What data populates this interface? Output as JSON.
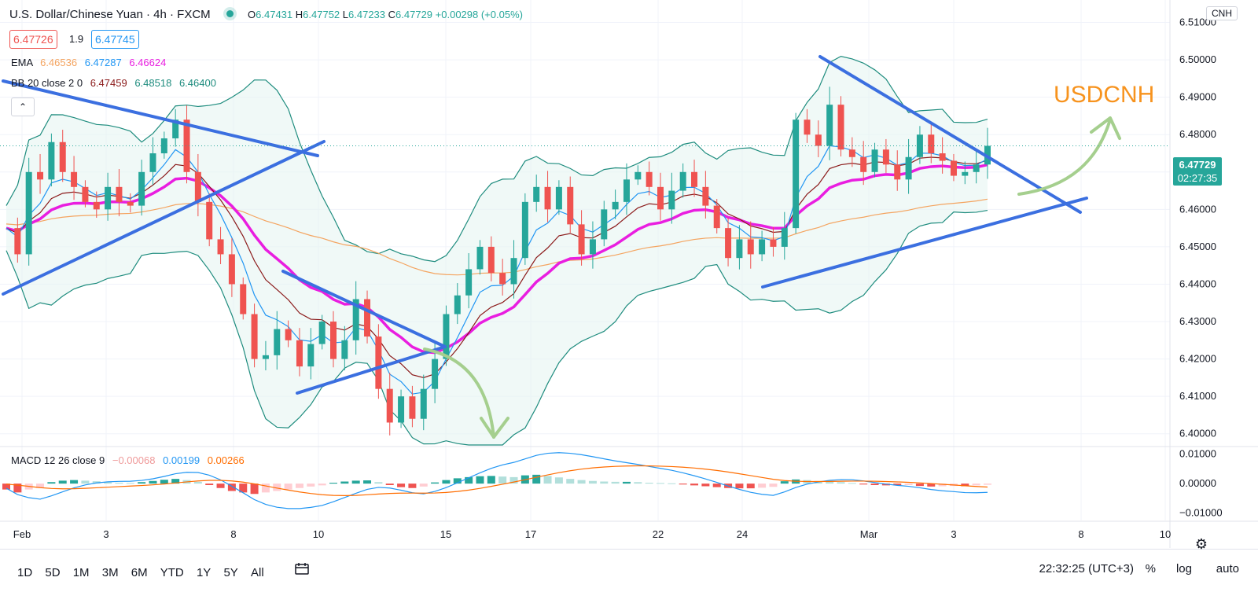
{
  "header": {
    "symbol": "U.S. Dollar/Chinese Yuan · 4h · FXCM",
    "ohlc": [
      {
        "k": "O",
        "v": "6.47431"
      },
      {
        "k": "H",
        "v": "6.47752"
      },
      {
        "k": "L",
        "v": "6.47233"
      },
      {
        "k": "C",
        "v": "6.47729"
      }
    ],
    "change": "+0.00298 (+0.05%)",
    "bid": "6.47726",
    "spread": "1.9",
    "ask": "6.47745"
  },
  "indicators": {
    "ema": {
      "label": "EMA",
      "values": [
        "6.46536",
        "6.47287",
        "6.46624"
      ]
    },
    "bb": {
      "label": "BB 20 close 2 0",
      "values": [
        "6.47459",
        "6.48518",
        "6.46400"
      ]
    },
    "macd": {
      "label": "MACD 12 26 close 9",
      "values": [
        "−0.00068",
        "0.00199",
        "0.00266"
      ]
    }
  },
  "currency_tag": "CNH",
  "current_price": "6.47729",
  "countdown": "02:27:35",
  "annotation": "USDCNH",
  "collapse_glyph": "⌃",
  "settings_glyph": "⚙",
  "timeframes": [
    "1D",
    "5D",
    "1M",
    "3M",
    "6M",
    "YTD",
    "1Y",
    "5Y",
    "All"
  ],
  "clock": "22:32:25 (UTC+3)",
  "options": {
    "percent": "%",
    "log": "log",
    "auto": "auto"
  },
  "colors": {
    "up": "#26a69a",
    "down": "#ef5350",
    "ema_fast": "#2196f3",
    "ema_mid": "#8b1a1a",
    "ema_slow": "#e91ee0",
    "ema_long": "#f4a460",
    "bb": "#1e8c7e",
    "trend": "#3b6fe0",
    "arrow": "#a5cf8e",
    "annotation": "#f7931e"
  },
  "chart_data": {
    "type": "candlestick",
    "x_ticks": [
      "Feb",
      "3",
      "8",
      "10",
      "15",
      "17",
      "22",
      "24",
      "Mar",
      "3",
      "8",
      "10"
    ],
    "price_ticks": [
      "6.51000",
      "6.50000",
      "6.49000",
      "6.48000",
      "6.47000",
      "6.46000",
      "6.45000",
      "6.44000",
      "6.43000",
      "6.42000",
      "6.41000",
      "6.40000"
    ],
    "macd_ticks": [
      "0.01000",
      "0.00000",
      "−0.01000"
    ],
    "price_range": [
      6.397,
      6.516
    ],
    "macd_range": [
      -0.0125,
      0.0115
    ],
    "path": [
      6.455,
      6.448,
      6.47,
      6.468,
      6.478,
      6.47,
      6.466,
      6.462,
      6.46,
      6.466,
      6.462,
      6.461,
      6.47,
      6.475,
      6.479,
      6.484,
      6.47,
      6.462,
      6.452,
      6.448,
      6.44,
      6.432,
      6.42,
      6.421,
      6.428,
      6.425,
      6.418,
      6.424,
      6.43,
      6.42,
      6.425,
      6.436,
      6.426,
      6.412,
      6.403,
      6.41,
      6.404,
      6.412,
      6.42,
      6.432,
      6.437,
      6.444,
      6.45,
      6.443,
      6.44,
      6.447,
      6.462,
      6.466,
      6.46,
      6.466,
      6.456,
      6.448,
      6.452,
      6.46,
      6.462,
      6.468,
      6.47,
      6.466,
      6.46,
      6.465,
      6.47,
      6.466,
      6.461,
      6.455,
      6.447,
      6.452,
      6.448,
      6.452,
      6.45,
      6.455,
      6.484,
      6.48,
      6.477,
      6.488,
      6.476,
      6.474,
      6.47,
      6.476,
      6.472,
      6.468,
      6.474,
      6.48,
      6.475,
      6.473,
      6.469,
      6.47,
      6.472,
      6.477
    ],
    "macd_hist": [
      -0.002,
      -0.003,
      -0.002,
      -0.0015,
      0.0005,
      0.001,
      0.0012,
      0.001,
      0.0008,
      0.0005,
      0.0003,
      0.0002,
      0.0005,
      0.0009,
      0.0013,
      0.0016,
      0.0012,
      0.0006,
      -0.0005,
      -0.0015,
      -0.0025,
      -0.003,
      -0.0035,
      -0.003,
      -0.0025,
      -0.002,
      -0.0015,
      -0.001,
      -0.0006,
      0.0003,
      0.0007,
      0.001,
      0.0011,
      0.0005,
      -0.0005,
      -0.0012,
      -0.0015,
      -0.001,
      0.0004,
      0.0012,
      0.0018,
      0.0022,
      0.0025,
      0.0026,
      0.0024,
      0.0022,
      0.0028,
      0.003,
      0.0026,
      0.0021,
      0.0016,
      0.0012,
      0.0009,
      0.0007,
      0.0006,
      0.0006,
      0.0005,
      0.0003,
      0.0002,
      0.0001,
      -0.0003,
      -0.0006,
      -0.0009,
      -0.0012,
      -0.0015,
      -0.0016,
      -0.0016,
      -0.0014,
      -0.0011,
      0.0008,
      0.0014,
      0.0012,
      0.0009,
      0.0008,
      0.0005,
      0.0002,
      -0.0003,
      -0.0005,
      -0.0006,
      -0.0006,
      -0.0005,
      -0.0008,
      -0.001,
      -0.0009,
      -0.0008,
      -0.0009,
      -0.0006,
      -0.0004
    ],
    "annotations": [
      "USDCNH"
    ]
  }
}
